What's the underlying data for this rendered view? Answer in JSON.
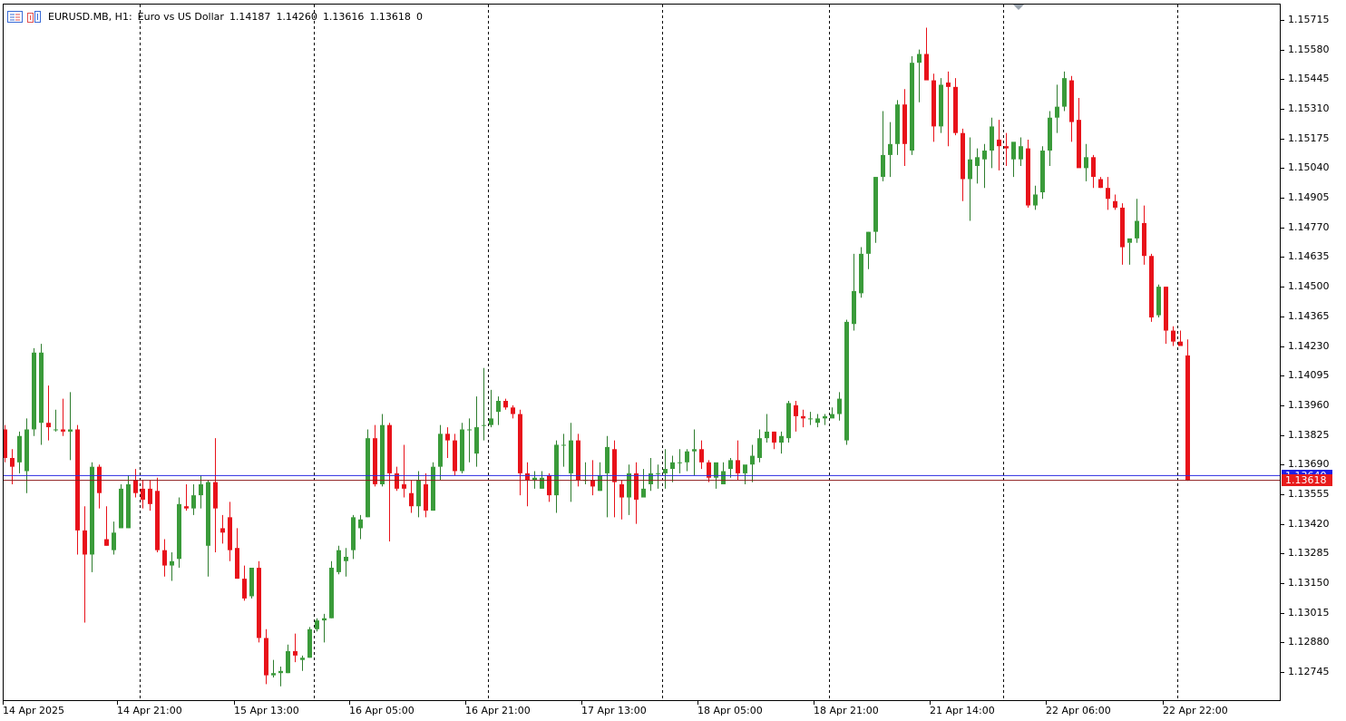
{
  "header": {
    "symbol": "EURUSD.MB, H1:",
    "description": "Euro vs US Dollar",
    "open": "1.14187",
    "high": "1.14260",
    "low": "1.13616",
    "close": "1.13618",
    "volume": "0",
    "icons": [
      "chart-window-icon",
      "one-click-trading-icon"
    ]
  },
  "price_axis": [
    "1.15715",
    "1.15580",
    "1.15445",
    "1.15310",
    "1.15175",
    "1.15040",
    "1.14905",
    "1.14770",
    "1.14635",
    "1.14500",
    "1.14365",
    "1.14230",
    "1.14095",
    "1.13960",
    "1.13825",
    "1.13690",
    "1.13555",
    "1.13420",
    "1.13285",
    "1.13150",
    "1.13015",
    "1.12880",
    "1.12745"
  ],
  "time_axis": [
    "14 Apr 2025",
    "14 Apr 21:00",
    "15 Apr 13:00",
    "16 Apr 05:00",
    "16 Apr 21:00",
    "17 Apr 13:00",
    "18 Apr 05:00",
    "18 Apr 21:00",
    "21 Apr 14:00",
    "22 Apr 06:00",
    "22 Apr 22:00"
  ],
  "bid_badge": {
    "label": "1.13618",
    "color": "#e81c1c"
  },
  "ask_badge": {
    "label": "1.13640",
    "color": "#1e1ee6"
  },
  "colors": {
    "bull": "#3a9b3a",
    "bear": "#e8121a",
    "wick": "#2f7d2f",
    "grid": "#000000",
    "bid_line": "#8b1a1a",
    "ask_line": "#2a2ae0"
  },
  "chart_data": {
    "type": "candlestick",
    "symbol": "EURUSD.MB",
    "timeframe": "H1",
    "ylim": [
      1.1268,
      1.1578
    ],
    "candles": [
      [
        1.1385,
        1.1387,
        1.137,
        1.1372
      ],
      [
        1.1372,
        1.1376,
        1.136,
        1.1368
      ],
      [
        1.137,
        1.1384,
        1.1365,
        1.1382
      ],
      [
        1.1366,
        1.139,
        1.1356,
        1.1385
      ],
      [
        1.1385,
        1.1422,
        1.1382,
        1.142
      ],
      [
        1.1388,
        1.1424,
        1.1378,
        1.142
      ],
      [
        1.1388,
        1.1405,
        1.138,
        1.1386
      ],
      [
        1.1385,
        1.1394,
        1.1384,
        1.1385
      ],
      [
        1.1385,
        1.1399,
        1.1382,
        1.1384
      ],
      [
        1.1384,
        1.1402,
        1.1371,
        1.1385
      ],
      [
        1.1385,
        1.1387,
        1.1328,
        1.1339
      ],
      [
        1.1339,
        1.135,
        1.1297,
        1.1328
      ],
      [
        1.1328,
        1.137,
        1.132,
        1.1368
      ],
      [
        1.1368,
        1.1369,
        1.1349,
        1.1356
      ],
      [
        1.1335,
        1.135,
        1.1332,
        1.1332
      ],
      [
        1.133,
        1.1343,
        1.1328,
        1.1338
      ],
      [
        1.134,
        1.136,
        1.134,
        1.1358
      ],
      [
        1.134,
        1.1364,
        1.134,
        1.136
      ],
      [
        1.1362,
        1.1367,
        1.1354,
        1.1356
      ],
      [
        1.1358,
        1.1362,
        1.1349,
        1.1353
      ],
      [
        1.1358,
        1.1362,
        1.1348,
        1.1351
      ],
      [
        1.1357,
        1.1363,
        1.1329,
        1.133
      ],
      [
        1.133,
        1.1335,
        1.1318,
        1.1323
      ],
      [
        1.1323,
        1.1329,
        1.1316,
        1.1325
      ],
      [
        1.1326,
        1.1354,
        1.1322,
        1.1351
      ],
      [
        1.135,
        1.136,
        1.1348,
        1.1349
      ],
      [
        1.1349,
        1.136,
        1.1346,
        1.1355
      ],
      [
        1.1355,
        1.1364,
        1.1349,
        1.136
      ],
      [
        1.1332,
        1.1362,
        1.1318,
        1.1361
      ],
      [
        1.1361,
        1.1381,
        1.1329,
        1.1349
      ],
      [
        1.134,
        1.1346,
        1.1333,
        1.1338
      ],
      [
        1.1345,
        1.1352,
        1.1325,
        1.133
      ],
      [
        1.1331,
        1.134,
        1.1317,
        1.1317
      ],
      [
        1.1317,
        1.1323,
        1.1307,
        1.1308
      ],
      [
        1.1309,
        1.1322,
        1.1308,
        1.1322
      ],
      [
        1.1322,
        1.1325,
        1.1288,
        1.129
      ],
      [
        1.129,
        1.1294,
        1.1269,
        1.1273
      ],
      [
        1.1273,
        1.128,
        1.1272,
        1.1274
      ],
      [
        1.1274,
        1.1277,
        1.1268,
        1.1275
      ],
      [
        1.1274,
        1.1287,
        1.1274,
        1.1284
      ],
      [
        1.1284,
        1.1292,
        1.1279,
        1.1282
      ],
      [
        1.128,
        1.1282,
        1.1275,
        1.1281
      ],
      [
        1.1281,
        1.1295,
        1.1281,
        1.1294
      ],
      [
        1.1294,
        1.1299,
        1.1293,
        1.1298
      ],
      [
        1.1298,
        1.1301,
        1.1288,
        1.1299
      ],
      [
        1.1299,
        1.1325,
        1.1299,
        1.1322
      ],
      [
        1.132,
        1.1332,
        1.1319,
        1.133
      ],
      [
        1.1325,
        1.1331,
        1.1318,
        1.1327
      ],
      [
        1.133,
        1.1346,
        1.1326,
        1.1345
      ],
      [
        1.134,
        1.1346,
        1.1335,
        1.1344
      ],
      [
        1.1345,
        1.1385,
        1.1345,
        1.1381
      ],
      [
        1.1381,
        1.1387,
        1.1359,
        1.136
      ],
      [
        1.136,
        1.1392,
        1.1359,
        1.1387
      ],
      [
        1.1387,
        1.1388,
        1.1334,
        1.1365
      ],
      [
        1.1365,
        1.1368,
        1.1357,
        1.1358
      ],
      [
        1.136,
        1.1378,
        1.1354,
        1.1358
      ],
      [
        1.1356,
        1.1362,
        1.1347,
        1.135
      ],
      [
        1.135,
        1.1366,
        1.1345,
        1.1362
      ],
      [
        1.136,
        1.1365,
        1.1345,
        1.1348
      ],
      [
        1.1348,
        1.137,
        1.1348,
        1.1368
      ],
      [
        1.1368,
        1.1387,
        1.1362,
        1.1383
      ],
      [
        1.1383,
        1.1386,
        1.1372,
        1.138
      ],
      [
        1.138,
        1.1383,
        1.1364,
        1.1366
      ],
      [
        1.1366,
        1.1388,
        1.1365,
        1.1385
      ],
      [
        1.1385,
        1.139,
        1.137,
        1.1385
      ],
      [
        1.1374,
        1.14,
        1.1368,
        1.1386
      ],
      [
        1.1387,
        1.1413,
        1.138,
        1.1387
      ],
      [
        1.1387,
        1.1403,
        1.1386,
        1.139
      ],
      [
        1.1393,
        1.14,
        1.1387,
        1.1398
      ],
      [
        1.1398,
        1.1399,
        1.1394,
        1.1395
      ],
      [
        1.1395,
        1.1396,
        1.139,
        1.1392
      ],
      [
        1.1392,
        1.1394,
        1.1355,
        1.1365
      ],
      [
        1.1365,
        1.137,
        1.135,
        1.1362
      ],
      [
        1.1362,
        1.1366,
        1.1358,
        1.1363
      ],
      [
        1.1358,
        1.1366,
        1.1358,
        1.1363
      ],
      [
        1.1364,
        1.1365,
        1.1352,
        1.1355
      ],
      [
        1.1355,
        1.138,
        1.1347,
        1.1378
      ],
      [
        1.1378,
        1.1383,
        1.1368,
        1.1378
      ],
      [
        1.1365,
        1.1388,
        1.1352,
        1.138
      ],
      [
        1.138,
        1.1383,
        1.1359,
        1.1362
      ],
      [
        1.1362,
        1.137,
        1.136,
        1.1362
      ],
      [
        1.1362,
        1.1371,
        1.1355,
        1.1359
      ],
      [
        1.1357,
        1.137,
        1.1357,
        1.1364
      ],
      [
        1.1365,
        1.1382,
        1.1345,
        1.1377
      ],
      [
        1.1376,
        1.138,
        1.1345,
        1.1361
      ],
      [
        1.136,
        1.1362,
        1.1344,
        1.1354
      ],
      [
        1.1354,
        1.1369,
        1.1346,
        1.1365
      ],
      [
        1.1365,
        1.137,
        1.1342,
        1.1353
      ],
      [
        1.1354,
        1.1367,
        1.1356,
        1.1358
      ],
      [
        1.136,
        1.1372,
        1.1357,
        1.1365
      ],
      [
        1.1365,
        1.1369,
        1.1358,
        1.1365
      ],
      [
        1.1365,
        1.1376,
        1.1358,
        1.1367
      ],
      [
        1.1367,
        1.1373,
        1.1361,
        1.137
      ],
      [
        1.137,
        1.1376,
        1.1365,
        1.137
      ],
      [
        1.137,
        1.1376,
        1.1366,
        1.1375
      ],
      [
        1.1375,
        1.1385,
        1.1364,
        1.1376
      ],
      [
        1.1376,
        1.138,
        1.1367,
        1.137
      ],
      [
        1.137,
        1.1371,
        1.1361,
        1.1363
      ],
      [
        1.1363,
        1.1369,
        1.1358,
        1.137
      ],
      [
        1.136,
        1.137,
        1.136,
        1.1366
      ],
      [
        1.1367,
        1.1372,
        1.1363,
        1.1371
      ],
      [
        1.1371,
        1.138,
        1.1362,
        1.1365
      ],
      [
        1.1365,
        1.1367,
        1.136,
        1.1369
      ],
      [
        1.1369,
        1.1378,
        1.1361,
        1.1373
      ],
      [
        1.1372,
        1.1385,
        1.137,
        1.1381
      ],
      [
        1.1381,
        1.1392,
        1.1379,
        1.1384
      ],
      [
        1.1384,
        1.1384,
        1.1376,
        1.1379
      ],
      [
        1.1379,
        1.1384,
        1.1374,
        1.1382
      ],
      [
        1.1381,
        1.1398,
        1.1379,
        1.1397
      ],
      [
        1.1396,
        1.1398,
        1.1384,
        1.1391
      ],
      [
        1.1391,
        1.1394,
        1.1386,
        1.139
      ],
      [
        1.139,
        1.1393,
        1.1387,
        1.139
      ],
      [
        1.1388,
        1.1392,
        1.1386,
        1.139
      ],
      [
        1.139,
        1.1392,
        1.1387,
        1.1391
      ],
      [
        1.139,
        1.1395,
        1.1391,
        1.1392
      ],
      [
        1.1392,
        1.1402,
        1.1389,
        1.1399
      ],
      [
        1.138,
        1.1435,
        1.1378,
        1.1434
      ],
      [
        1.1433,
        1.1465,
        1.143,
        1.1448
      ],
      [
        1.1447,
        1.1468,
        1.1445,
        1.1465
      ],
      [
        1.1465,
        1.1475,
        1.1458,
        1.1475
      ],
      [
        1.1475,
        1.15,
        1.147,
        1.15
      ],
      [
        1.15,
        1.153,
        1.1498,
        1.151
      ],
      [
        1.151,
        1.1525,
        1.15,
        1.1515
      ],
      [
        1.1515,
        1.1535,
        1.151,
        1.1533
      ],
      [
        1.1533,
        1.154,
        1.1505,
        1.1515
      ],
      [
        1.1512,
        1.1555,
        1.151,
        1.1552
      ],
      [
        1.1552,
        1.1558,
        1.1534,
        1.1556
      ],
      [
        1.1556,
        1.1568,
        1.1546,
        1.1544
      ],
      [
        1.1544,
        1.1547,
        1.1516,
        1.1523
      ],
      [
        1.1523,
        1.1545,
        1.152,
        1.1542
      ],
      [
        1.1543,
        1.1548,
        1.1514,
        1.1541
      ],
      [
        1.1541,
        1.1545,
        1.1519,
        1.152
      ],
      [
        1.152,
        1.1522,
        1.1489,
        1.1499
      ],
      [
        1.1499,
        1.1518,
        1.148,
        1.1508
      ],
      [
        1.1505,
        1.1513,
        1.1497,
        1.1509
      ],
      [
        1.1508,
        1.1515,
        1.1495,
        1.1512
      ],
      [
        1.1512,
        1.1527,
        1.1504,
        1.1523
      ],
      [
        1.1517,
        1.1526,
        1.1503,
        1.1514
      ],
      [
        1.1514,
        1.152,
        1.1505,
        1.1513
      ],
      [
        1.1508,
        1.1515,
        1.15,
        1.1516
      ],
      [
        1.1508,
        1.1518,
        1.1505,
        1.1514
      ],
      [
        1.1513,
        1.1517,
        1.1486,
        1.1487
      ],
      [
        1.1487,
        1.1496,
        1.1485,
        1.1492
      ],
      [
        1.1493,
        1.1514,
        1.149,
        1.1512
      ],
      [
        1.1512,
        1.153,
        1.1505,
        1.1527
      ],
      [
        1.1527,
        1.1542,
        1.152,
        1.1532
      ],
      [
        1.1532,
        1.1548,
        1.153,
        1.1545
      ],
      [
        1.1544,
        1.1546,
        1.1516,
        1.1525
      ],
      [
        1.1526,
        1.1536,
        1.1507,
        1.1504
      ],
      [
        1.1504,
        1.1515,
        1.1498,
        1.1509
      ],
      [
        1.1509,
        1.151,
        1.1495,
        1.15
      ],
      [
        1.1499,
        1.15,
        1.1495,
        1.1495
      ],
      [
        1.1495,
        1.15,
        1.1485,
        1.149
      ],
      [
        1.1489,
        1.1492,
        1.1485,
        1.1486
      ],
      [
        1.1486,
        1.1488,
        1.146,
        1.1468
      ],
      [
        1.147,
        1.147,
        1.146,
        1.1472
      ],
      [
        1.1472,
        1.149,
        1.147,
        1.148
      ],
      [
        1.1479,
        1.1487,
        1.146,
        1.1464
      ],
      [
        1.1464,
        1.1465,
        1.1434,
        1.1436
      ],
      [
        1.1437,
        1.1451,
        1.1436,
        1.145
      ],
      [
        1.145,
        1.145,
        1.1424,
        1.143
      ],
      [
        1.143,
        1.1432,
        1.1423,
        1.1425
      ],
      [
        1.1425,
        1.143,
        1.1424,
        1.1423
      ],
      [
        1.14187,
        1.1426,
        1.13616,
        1.13618
      ]
    ]
  }
}
